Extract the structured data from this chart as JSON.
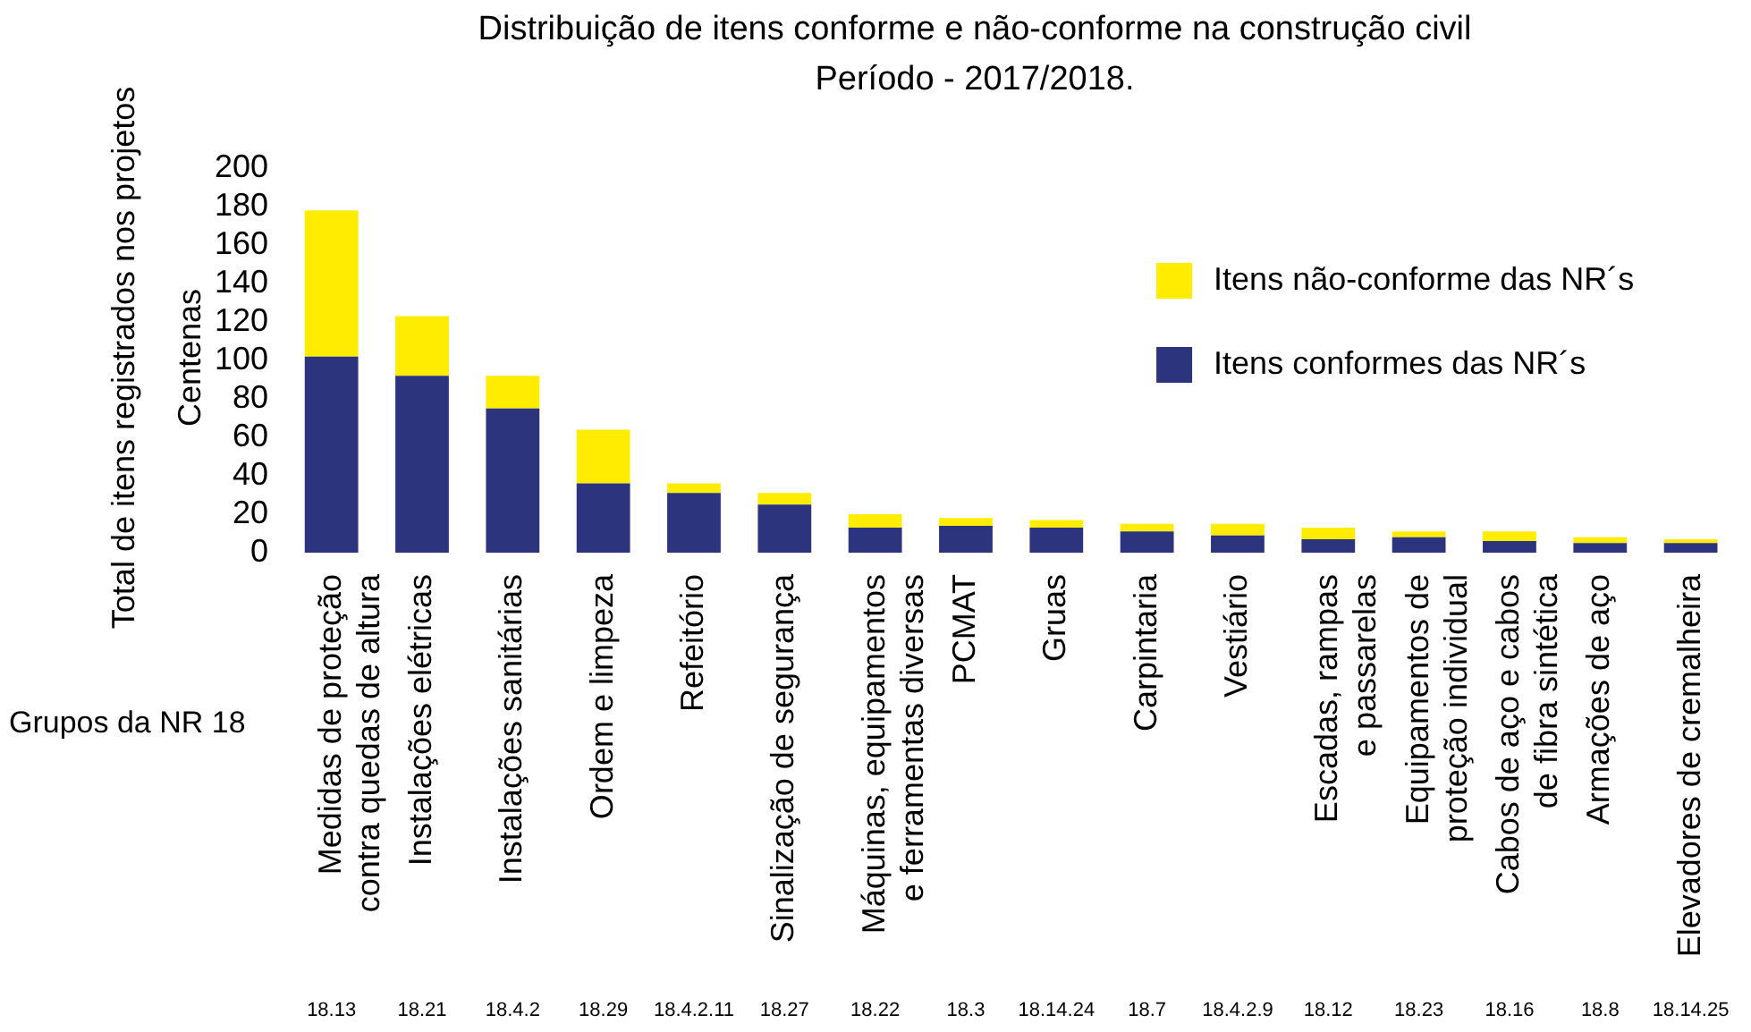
{
  "chart_data": {
    "type": "bar",
    "title": "Distribuição de itens conforme e não-conforme na construção civil",
    "subtitle": "Período - 2017/2018.",
    "xlabel": "Grupos da NR 18",
    "ylabel": "Total de itens registrados nos projetos",
    "categories": [
      "Medidas de proteção contra quedas de altura",
      "Instalações elétricas",
      "Instalações sanitárias",
      "Ordem e limpeza",
      "Refeitório",
      "Sinalização de segurança",
      "Máquinas, equipamentos e ferramentas diversas",
      "PCMAT",
      "Gruas",
      "Carpintaria",
      "Vestiário",
      "Escadas, rampas e passarelas",
      "Equipamentos de proteção individual",
      "Cabos de aço e cabos de fibra sintética",
      "Armações de aço",
      "Elevadores de cremalheira"
    ],
    "series": [
      {
        "name": "Itens conformes das NR´s",
        "color": "#2b347c",
        "values": [
          102,
          92,
          75,
          36,
          31,
          25,
          13,
          14,
          13,
          11,
          9,
          7,
          8,
          6,
          5,
          5
        ]
      },
      {
        "name": "Itens não-conforme das NR´s",
        "color": "#ffec00",
        "values": [
          76,
          31,
          17,
          28,
          5,
          6,
          7,
          4,
          4,
          4,
          6,
          6,
          3,
          5,
          3,
          2
        ]
      }
    ],
    "stacked": true,
    "ylim": [
      0,
      200
    ],
    "yticks": [
      0,
      20,
      40,
      60,
      80,
      100,
      120,
      140,
      160,
      180,
      200
    ],
    "grid": false,
    "legend": "top right",
    "annotations": [
      "Centenas",
      "18.13",
      "18.21",
      "18.4.2",
      "18.29",
      "18.4.2.11",
      "18.27",
      "18.22",
      "18.3",
      "18.14.24",
      "18.7",
      "18.4.2.9",
      "18.12",
      "18.23",
      "18.16",
      "18.8",
      "18.14.25"
    ]
  }
}
